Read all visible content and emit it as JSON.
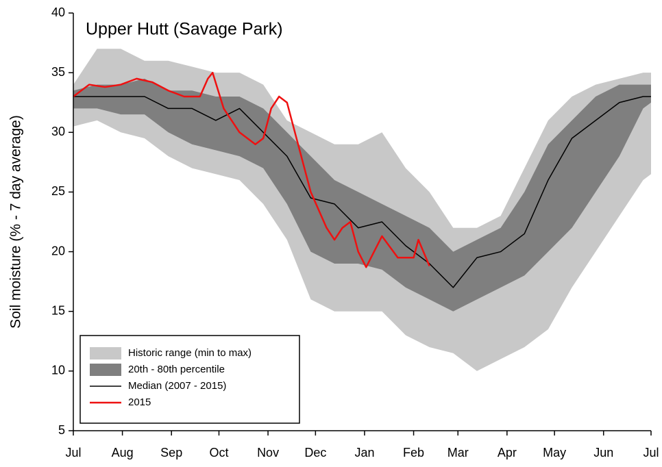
{
  "chart_data": {
    "type": "line",
    "title": "Upper Hutt (Savage Park)",
    "y_label": "Soil moisture (% - 7 day average)",
    "xlim": [
      0,
      365
    ],
    "xticks": [
      {
        "value": 0,
        "label": "Jul"
      },
      {
        "value": 31,
        "label": "Aug"
      },
      {
        "value": 62,
        "label": "Sep"
      },
      {
        "value": 92,
        "label": "Oct"
      },
      {
        "value": 123,
        "label": "Nov"
      },
      {
        "value": 153,
        "label": "Dec"
      },
      {
        "value": 184,
        "label": "Jan"
      },
      {
        "value": 215,
        "label": "Feb"
      },
      {
        "value": 243,
        "label": "Mar"
      },
      {
        "value": 274,
        "label": "Apr"
      },
      {
        "value": 304,
        "label": "May"
      },
      {
        "value": 335,
        "label": "Jun"
      },
      {
        "value": 365,
        "label": "Jul"
      }
    ],
    "ylim": [
      5,
      40
    ],
    "yticks": [
      5,
      10,
      15,
      20,
      25,
      30,
      35,
      40
    ],
    "legend": "lower left",
    "series": [
      {
        "name": "Historic range (min to max)",
        "kind": "band",
        "color": "#c8c8c8",
        "x": [
          0,
          15,
          30,
          45,
          60,
          75,
          90,
          105,
          120,
          135,
          150,
          165,
          180,
          195,
          210,
          225,
          240,
          255,
          270,
          285,
          300,
          315,
          330,
          345,
          360,
          365
        ],
        "high": [
          34,
          37,
          37,
          36,
          36,
          35.5,
          35,
          35,
          34,
          31,
          30,
          29,
          29,
          30,
          27,
          25,
          22,
          22,
          23,
          27,
          31,
          33,
          34,
          34.5,
          35,
          35
        ],
        "low": [
          30.5,
          31,
          30,
          29.5,
          28,
          27,
          26.5,
          26,
          24,
          21,
          16,
          15,
          15,
          15,
          13,
          12,
          11.5,
          10,
          11,
          12,
          13.5,
          17,
          20,
          23,
          26,
          26.5
        ]
      },
      {
        "name": "20th - 80th percentile",
        "kind": "band",
        "color": "#7f7f7f",
        "x": [
          0,
          15,
          30,
          45,
          60,
          75,
          90,
          105,
          120,
          135,
          150,
          165,
          180,
          195,
          210,
          225,
          240,
          255,
          270,
          285,
          300,
          315,
          330,
          345,
          360,
          365
        ],
        "high": [
          33.5,
          34,
          34,
          34.5,
          33.5,
          33.5,
          33,
          33,
          32,
          30,
          28,
          26,
          25,
          24,
          23,
          22,
          20,
          21,
          22,
          25,
          29,
          31,
          33,
          34,
          34,
          34
        ],
        "low": [
          32,
          32,
          31.5,
          31.5,
          30,
          29,
          28.5,
          28,
          27,
          24,
          20,
          19,
          19,
          18.5,
          17,
          16,
          15,
          16,
          17,
          18,
          20,
          22,
          25,
          28,
          32,
          32.5
        ]
      },
      {
        "name": "Median (2007 - 2015)",
        "kind": "line",
        "color": "#000000",
        "width": 1.5,
        "x": [
          0,
          15,
          30,
          45,
          60,
          75,
          90,
          105,
          120,
          135,
          150,
          165,
          180,
          195,
          210,
          225,
          240,
          255,
          270,
          285,
          300,
          315,
          330,
          345,
          360,
          365
        ],
        "values": [
          33,
          33,
          33,
          33,
          32,
          32,
          31,
          32,
          30,
          28,
          24.5,
          24,
          22,
          22.5,
          20.5,
          19,
          17,
          19.5,
          20,
          21.5,
          26,
          29.5,
          31,
          32.5,
          33,
          33
        ]
      },
      {
        "name": "2015",
        "kind": "line",
        "color": "#ee1111",
        "width": 2.5,
        "x": [
          0,
          10,
          20,
          30,
          40,
          50,
          60,
          70,
          80,
          85,
          88,
          95,
          105,
          115,
          120,
          125,
          130,
          135,
          140,
          150,
          160,
          165,
          170,
          175,
          180,
          185,
          195,
          205,
          215,
          218,
          225
        ],
        "values": [
          33,
          34,
          33.8,
          34,
          34.5,
          34.2,
          33.5,
          33,
          33,
          34.5,
          35,
          32,
          30,
          29,
          29.5,
          32,
          33,
          32.5,
          30,
          25,
          22,
          21,
          22,
          22.5,
          20,
          18.7,
          21.3,
          19.5,
          19.5,
          21,
          18.8
        ]
      }
    ]
  }
}
